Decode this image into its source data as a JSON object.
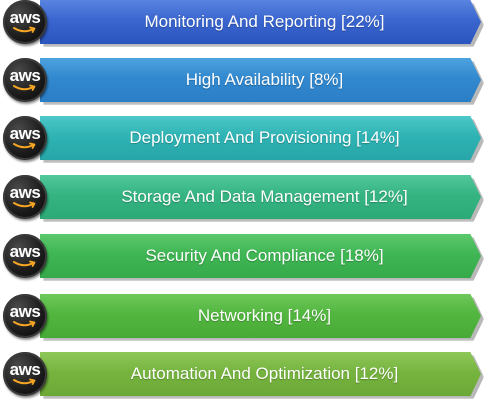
{
  "logo_text": "aws",
  "items": [
    {
      "label": "Monitoring And Reporting [22%]"
    },
    {
      "label": "High Availability [8%]"
    },
    {
      "label": "Deployment And Provisioning [14%]"
    },
    {
      "label": "Storage And Data Management [12%]"
    },
    {
      "label": "Security And Compliance [18%]"
    },
    {
      "label": "Networking [14%]"
    },
    {
      "label": "Automation And Optimization [12%]"
    }
  ],
  "colors": {
    "logo_background": "#1c1c1c",
    "logo_smile": "#f6a623",
    "bars": [
      "#3a66cf",
      "#3289cf",
      "#2fb3b4",
      "#35b482",
      "#3fb654",
      "#52b63f",
      "#76b43f"
    ]
  },
  "icon": "aws-logo-icon"
}
